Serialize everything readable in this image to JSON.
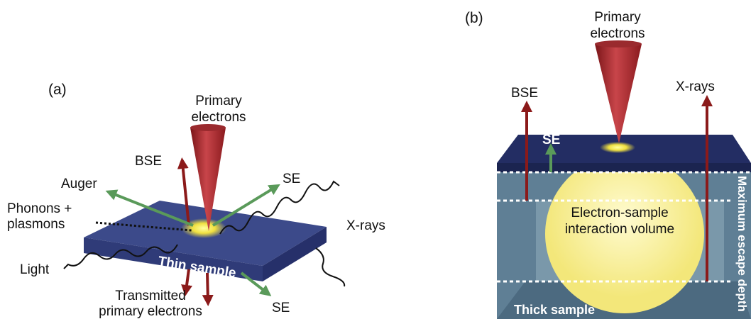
{
  "panel_a": {
    "label": "(a)",
    "beam": [
      "Primary",
      "electrons"
    ],
    "bse": "BSE",
    "auger": "Auger",
    "se_top": "SE",
    "phonons": [
      "Phonons +",
      "plasmons"
    ],
    "xrays": "X-rays",
    "light": "Light",
    "sample": "Thin sample",
    "transmitted": [
      "Transmitted",
      "primary electrons"
    ],
    "se_bottom": "SE"
  },
  "panel_b": {
    "label": "(b)",
    "beam": [
      "Primary",
      "electrons"
    ],
    "bse": "BSE",
    "se": "SE",
    "xrays": "X-rays",
    "volume": [
      "Electron-sample",
      "interaction volume"
    ],
    "depth": "Maximum escape depth",
    "sample": "Thick sample"
  }
}
